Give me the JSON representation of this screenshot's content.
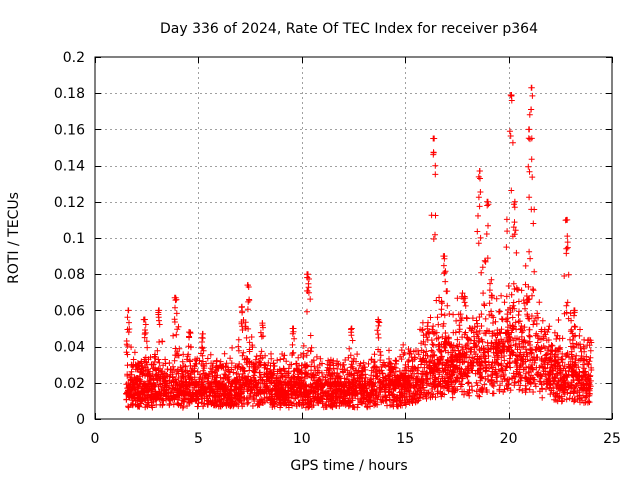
{
  "chart_data": {
    "type": "scatter",
    "title": "Day 336 of 2024, Rate Of TEC Index for receiver p364",
    "xlabel": "GPS time / hours",
    "ylabel": "ROTI / TECUs",
    "xlim": [
      0,
      25
    ],
    "ylim": [
      0,
      0.2
    ],
    "xticks": [
      0,
      5,
      10,
      15,
      20,
      25
    ],
    "yticks": [
      0,
      0.02,
      0.04,
      0.06,
      0.08,
      0.1,
      0.12,
      0.14,
      0.16,
      0.18,
      0.2
    ],
    "xtick_labels": [
      "0",
      "5",
      "10",
      "15",
      "20",
      "25"
    ],
    "ytick_labels": [
      "0",
      "0.02",
      "0.04",
      "0.06",
      "0.08",
      "0.1",
      "0.12",
      "0.14",
      "0.16",
      "0.18",
      "0.2"
    ],
    "grid": true,
    "marker": "+",
    "marker_color": "#ff0000",
    "series": [
      {
        "name": "ROTI",
        "x_range": [
          1.5,
          24.0
        ],
        "baseline": [
          [
            1.5,
            0.012
          ],
          [
            3,
            0.012
          ],
          [
            5,
            0.012
          ],
          [
            7,
            0.013
          ],
          [
            9,
            0.012
          ],
          [
            11,
            0.012
          ],
          [
            13,
            0.012
          ],
          [
            14.5,
            0.013
          ],
          [
            15.5,
            0.016
          ],
          [
            16.5,
            0.02
          ],
          [
            17.5,
            0.022
          ],
          [
            18.5,
            0.024
          ],
          [
            19.5,
            0.026
          ],
          [
            20.5,
            0.026
          ],
          [
            21.5,
            0.022
          ],
          [
            22.5,
            0.018
          ],
          [
            23.5,
            0.016
          ],
          [
            24,
            0.015
          ]
        ],
        "peaks": [
          {
            "x": 1.6,
            "y": 0.06
          },
          {
            "x": 2.4,
            "y": 0.055
          },
          {
            "x": 3.1,
            "y": 0.06
          },
          {
            "x": 3.9,
            "y": 0.067
          },
          {
            "x": 4.6,
            "y": 0.048
          },
          {
            "x": 5.2,
            "y": 0.047
          },
          {
            "x": 7.1,
            "y": 0.062
          },
          {
            "x": 7.4,
            "y": 0.074
          },
          {
            "x": 8.1,
            "y": 0.053
          },
          {
            "x": 9.6,
            "y": 0.05
          },
          {
            "x": 10.3,
            "y": 0.08
          },
          {
            "x": 12.4,
            "y": 0.05
          },
          {
            "x": 13.7,
            "y": 0.055
          },
          {
            "x": 16.4,
            "y": 0.155
          },
          {
            "x": 16.9,
            "y": 0.09
          },
          {
            "x": 18.6,
            "y": 0.137
          },
          {
            "x": 19.0,
            "y": 0.12
          },
          {
            "x": 20.1,
            "y": 0.179
          },
          {
            "x": 20.3,
            "y": 0.12
          },
          {
            "x": 21.1,
            "y": 0.183
          },
          {
            "x": 21.0,
            "y": 0.16
          },
          {
            "x": 22.8,
            "y": 0.11
          },
          {
            "x": 23.2,
            "y": 0.06
          }
        ]
      }
    ]
  }
}
